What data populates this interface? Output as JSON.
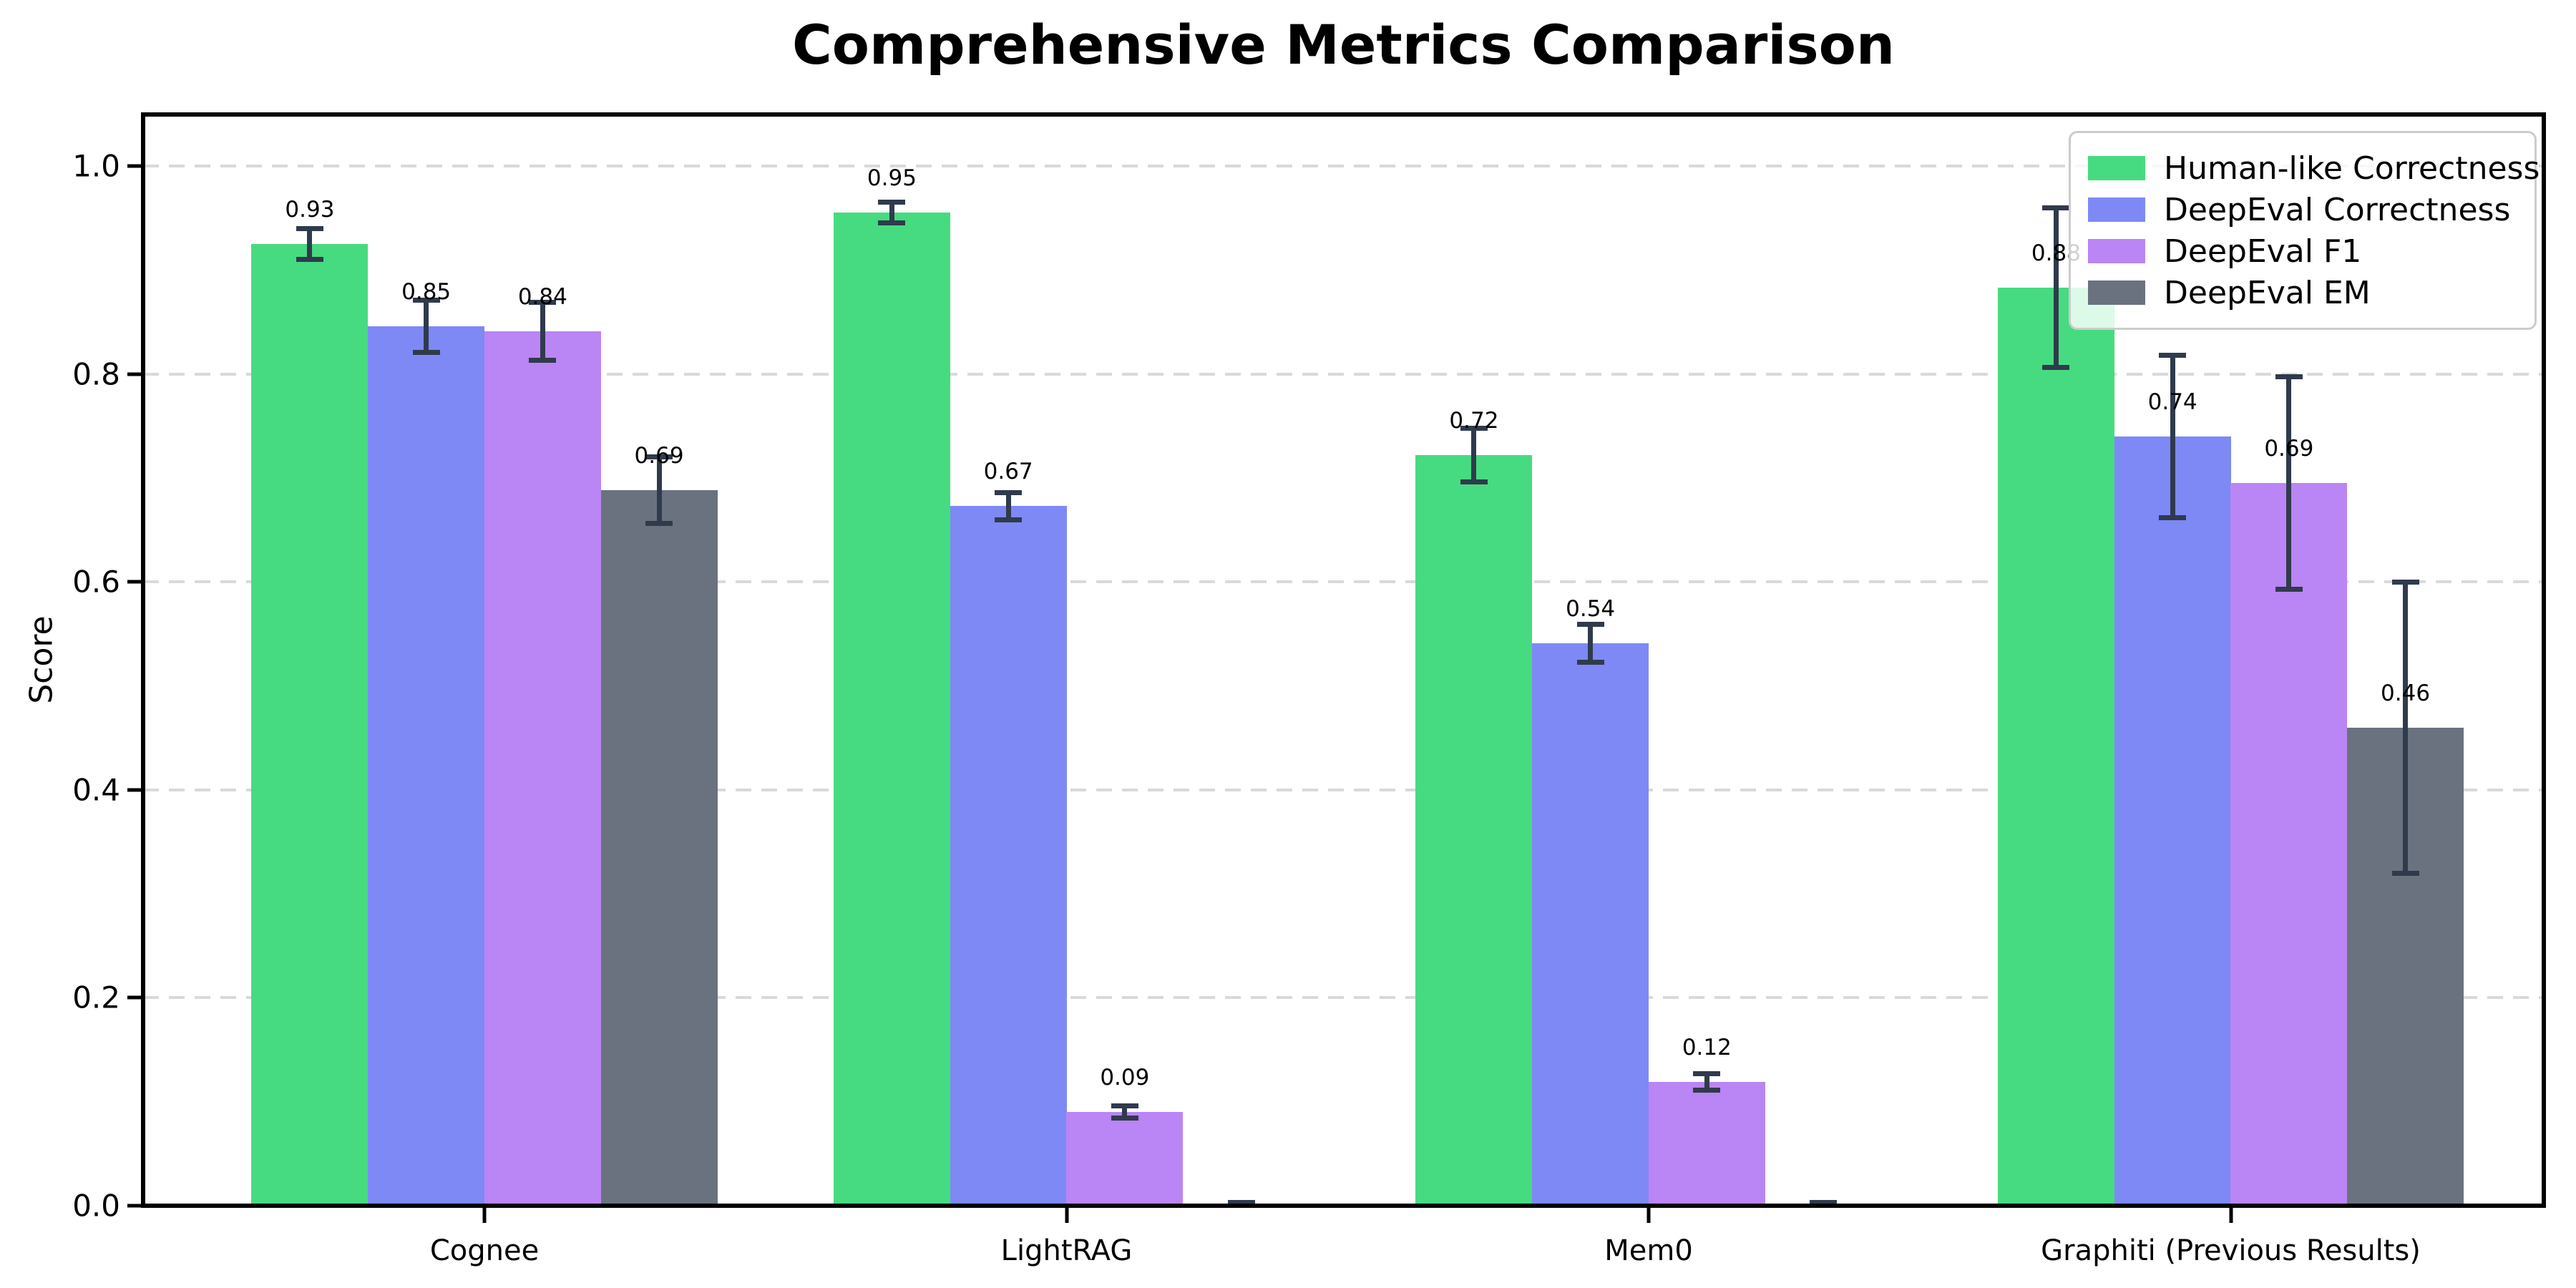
{
  "title": "Comprehensive Metrics Comparison",
  "chart_data": {
    "type": "bar",
    "title": "Comprehensive Metrics Comparison",
    "xlabel": "",
    "ylabel": "Score",
    "ylim": [
      0.0,
      1.05
    ],
    "yticks": [
      0.0,
      0.2,
      0.4,
      0.6,
      0.8,
      1.0
    ],
    "ytick_labels": [
      "0.0",
      "0.2",
      "0.4",
      "0.6",
      "0.8",
      "1.0"
    ],
    "grid": "horizontal dashed gridlines",
    "legend_position": "upper right",
    "error_bar_color": "#2f3b4c",
    "categories": [
      "Cognee",
      "LightRAG",
      "Mem0",
      "Graphiti (Previous Results)"
    ],
    "series": [
      {
        "name": "Human-like Correctness",
        "color": "#46db80",
        "values": [
          0.93,
          0.95,
          0.72,
          0.88
        ],
        "bar_heights": [
          0.925,
          0.955,
          0.722,
          0.883
        ],
        "errors": [
          0.015,
          0.01,
          0.026,
          0.077
        ],
        "labels": [
          "0.93",
          "0.95",
          "0.72",
          "0.88"
        ]
      },
      {
        "name": "DeepEval Correctness",
        "color": "#7e89f5",
        "values": [
          0.85,
          0.67,
          0.54,
          0.74
        ],
        "bar_heights": [
          0.846,
          0.673,
          0.541,
          0.74
        ],
        "errors": [
          0.025,
          0.013,
          0.018,
          0.078
        ],
        "labels": [
          "0.85",
          "0.67",
          "0.54",
          "0.74"
        ]
      },
      {
        "name": "DeepEval F1",
        "color": "#ba85f4",
        "values": [
          0.84,
          0.09,
          0.12,
          0.69
        ],
        "bar_heights": [
          0.841,
          0.09,
          0.119,
          0.695
        ],
        "errors": [
          0.028,
          0.006,
          0.008,
          0.102
        ],
        "labels": [
          "0.84",
          "0.09",
          "0.12",
          "0.69"
        ]
      },
      {
        "name": "DeepEval EM",
        "color": "#6a7280",
        "values": [
          0.69,
          0.0,
          0.0,
          0.46
        ],
        "bar_heights": [
          0.688,
          0.0,
          0.0,
          0.46
        ],
        "errors": [
          0.032,
          0.003,
          0.003,
          0.14
        ],
        "labels": [
          "0.69",
          "",
          "",
          "0.46"
        ]
      }
    ]
  }
}
